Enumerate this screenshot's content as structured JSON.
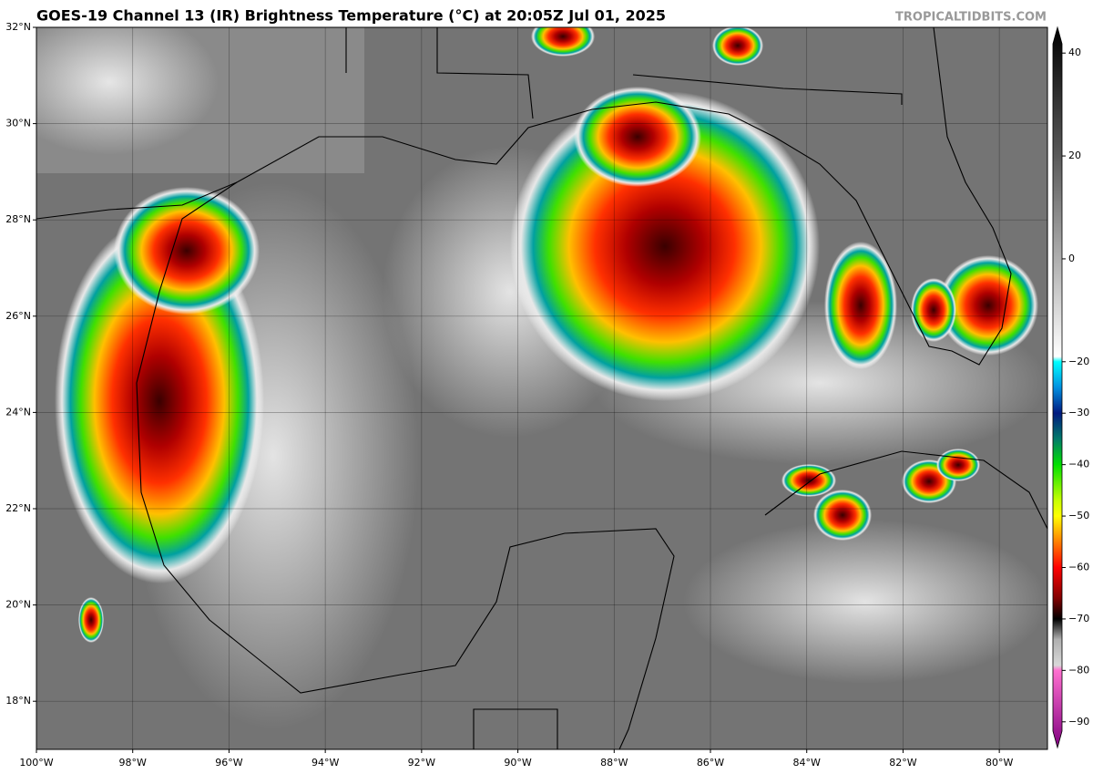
{
  "map": {
    "title": "GOES-19 Channel 13 (IR) Brightness Temperature (°C) at 20:05Z Jul 01, 2025",
    "credit": "TROPICALTIDBITS.COM",
    "lonlim": [
      -100,
      -79
    ],
    "latlim": [
      17,
      32
    ],
    "lat_ticks": [
      {
        "value": 32,
        "label": "32°N"
      },
      {
        "value": 30,
        "label": "30°N"
      },
      {
        "value": 28,
        "label": "28°N"
      },
      {
        "value": 26,
        "label": "26°N"
      },
      {
        "value": 24,
        "label": "24°N"
      },
      {
        "value": 22,
        "label": "22°N"
      },
      {
        "value": 20,
        "label": "20°N"
      },
      {
        "value": 18,
        "label": "18°N"
      }
    ],
    "lon_ticks": [
      {
        "value": -100,
        "label": "100°W"
      },
      {
        "value": -98,
        "label": "98°W"
      },
      {
        "value": -96,
        "label": "96°W"
      },
      {
        "value": -94,
        "label": "94°W"
      },
      {
        "value": -92,
        "label": "92°W"
      },
      {
        "value": -90,
        "label": "90°W"
      },
      {
        "value": -88,
        "label": "88°W"
      },
      {
        "value": -86,
        "label": "86°W"
      },
      {
        "value": -84,
        "label": "84°W"
      },
      {
        "value": -82,
        "label": "82°W"
      },
      {
        "value": -80,
        "label": "80°W"
      }
    ],
    "colorbar": {
      "lim": [
        -95,
        45
      ],
      "ticks": [
        40,
        20,
        0,
        {
          "value": -20,
          "label": "−20"
        },
        {
          "value": -30,
          "label": "−30"
        },
        {
          "value": -40,
          "label": "−40"
        },
        {
          "value": -50,
          "label": "−50"
        },
        {
          "value": -60,
          "label": "−60"
        },
        {
          "value": -70,
          "label": "−70"
        },
        {
          "value": -80,
          "label": "−80"
        },
        {
          "value": -90,
          "label": "−90"
        }
      ],
      "stops": [
        {
          "value": 45,
          "color": "#000000"
        },
        {
          "value": 20,
          "color": "#5a5a5a"
        },
        {
          "value": -19,
          "color": "#ffffff"
        },
        {
          "value": -20,
          "color": "#00ffff"
        },
        {
          "value": -25,
          "color": "#0090e0"
        },
        {
          "value": -30,
          "color": "#001a80"
        },
        {
          "value": -35,
          "color": "#007a6a"
        },
        {
          "value": -40,
          "color": "#00e000"
        },
        {
          "value": -47,
          "color": "#c8ff00"
        },
        {
          "value": -50,
          "color": "#ffff00"
        },
        {
          "value": -55,
          "color": "#ff8000"
        },
        {
          "value": -60,
          "color": "#ff0000"
        },
        {
          "value": -66,
          "color": "#800000"
        },
        {
          "value": -70,
          "color": "#000000"
        },
        {
          "value": -74,
          "color": "#b0b0b0"
        },
        {
          "value": -79,
          "color": "#d8d8d8"
        },
        {
          "value": -80,
          "color": "#ff70d0"
        },
        {
          "value": -95,
          "color": "#800080"
        }
      ]
    }
  }
}
